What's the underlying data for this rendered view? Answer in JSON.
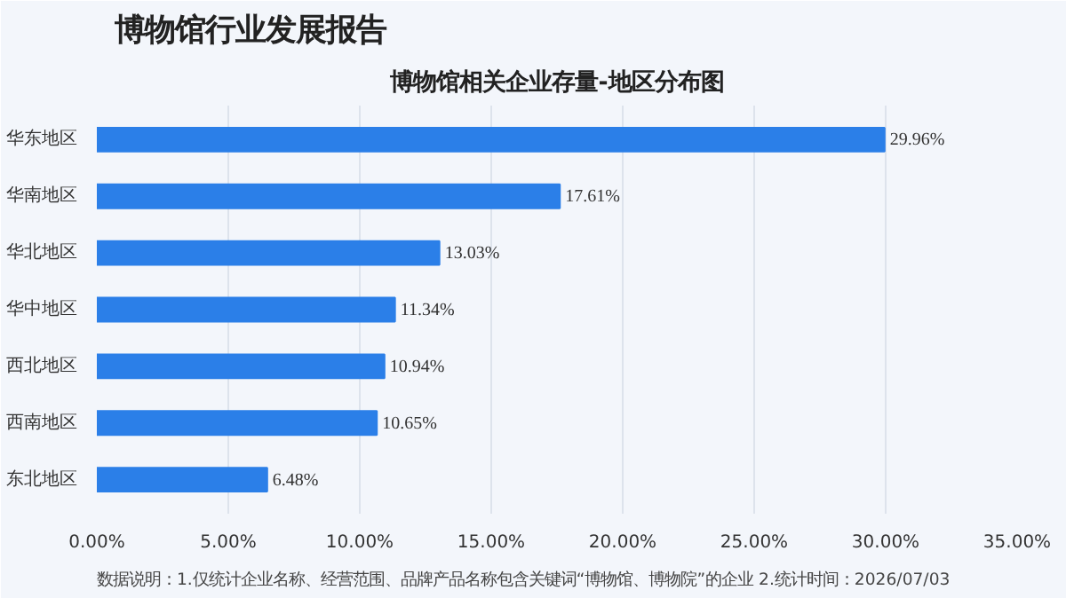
{
  "chart_data": {
    "type": "bar",
    "orientation": "horizontal",
    "title": "博物馆行业发展报告",
    "subtitle": "博物馆相关企业存量-地区分布图",
    "categories": [
      "华东地区",
      "华南地区",
      "华北地区",
      "华中地区",
      "西北地区",
      "西南地区",
      "东北地区"
    ],
    "values": [
      29.96,
      17.61,
      13.03,
      11.34,
      10.94,
      10.65,
      6.48
    ],
    "value_labels": [
      "29.96%",
      "17.61%",
      "13.03%",
      "11.34%",
      "10.94%",
      "10.65%",
      "6.48%"
    ],
    "color": "#2b7fe8",
    "xlim": [
      0,
      35
    ],
    "xticks": [
      {
        "value": 0,
        "label": "0.00%"
      },
      {
        "value": 5,
        "label": "5.00%"
      },
      {
        "value": 10,
        "label": "10.00%"
      },
      {
        "value": 15,
        "label": "15.00%"
      },
      {
        "value": 20,
        "label": "20.00%"
      },
      {
        "value": 25,
        "label": "25.00%"
      },
      {
        "value": 30,
        "label": "30.00%"
      },
      {
        "value": 35,
        "label": "35.00%"
      }
    ],
    "grid": "x",
    "annotations": [
      "数据说明：1.仅统计企业名称、经营范围、品牌产品名称包含关键词“博物馆、博物院”的企业  2.统计时间：2026/07/03"
    ]
  }
}
